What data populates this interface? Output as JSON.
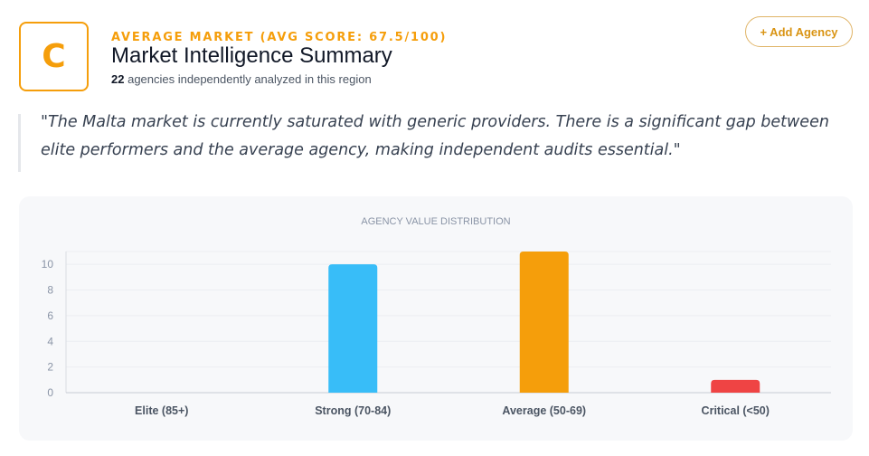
{
  "header": {
    "grade": "C",
    "eyebrow": "AVERAGE MARKET (AVG SCORE: 67.5/100)",
    "title": "Market Intelligence Summary",
    "agency_count": "22",
    "subtitle_suffix": "agencies independently analyzed in this region",
    "add_button_label": "+ Add Agency"
  },
  "quote": "\"The Malta market is currently saturated with generic providers. There is a significant gap between elite performers and the average agency, making independent audits essential.\"",
  "colors": {
    "accent": "#f59e0b",
    "strong": "#38bdf8",
    "average": "#f59e0b",
    "critical": "#ef4444",
    "elite": "#22c55e"
  },
  "chart_data": {
    "type": "bar",
    "title": "AGENCY VALUE DISTRIBUTION",
    "xlabel": "",
    "ylabel": "",
    "categories": [
      "Elite (85+)",
      "Strong (70-84)",
      "Average (50-69)",
      "Critical (<50)"
    ],
    "values": [
      0,
      10,
      11,
      1
    ],
    "bar_colors": [
      "#22c55e",
      "#38bdf8",
      "#f59e0b",
      "#ef4444"
    ],
    "ylim": [
      0,
      11
    ],
    "yticks": [
      0,
      2,
      4,
      6,
      8,
      10
    ],
    "grid": true,
    "legend": "none"
  }
}
